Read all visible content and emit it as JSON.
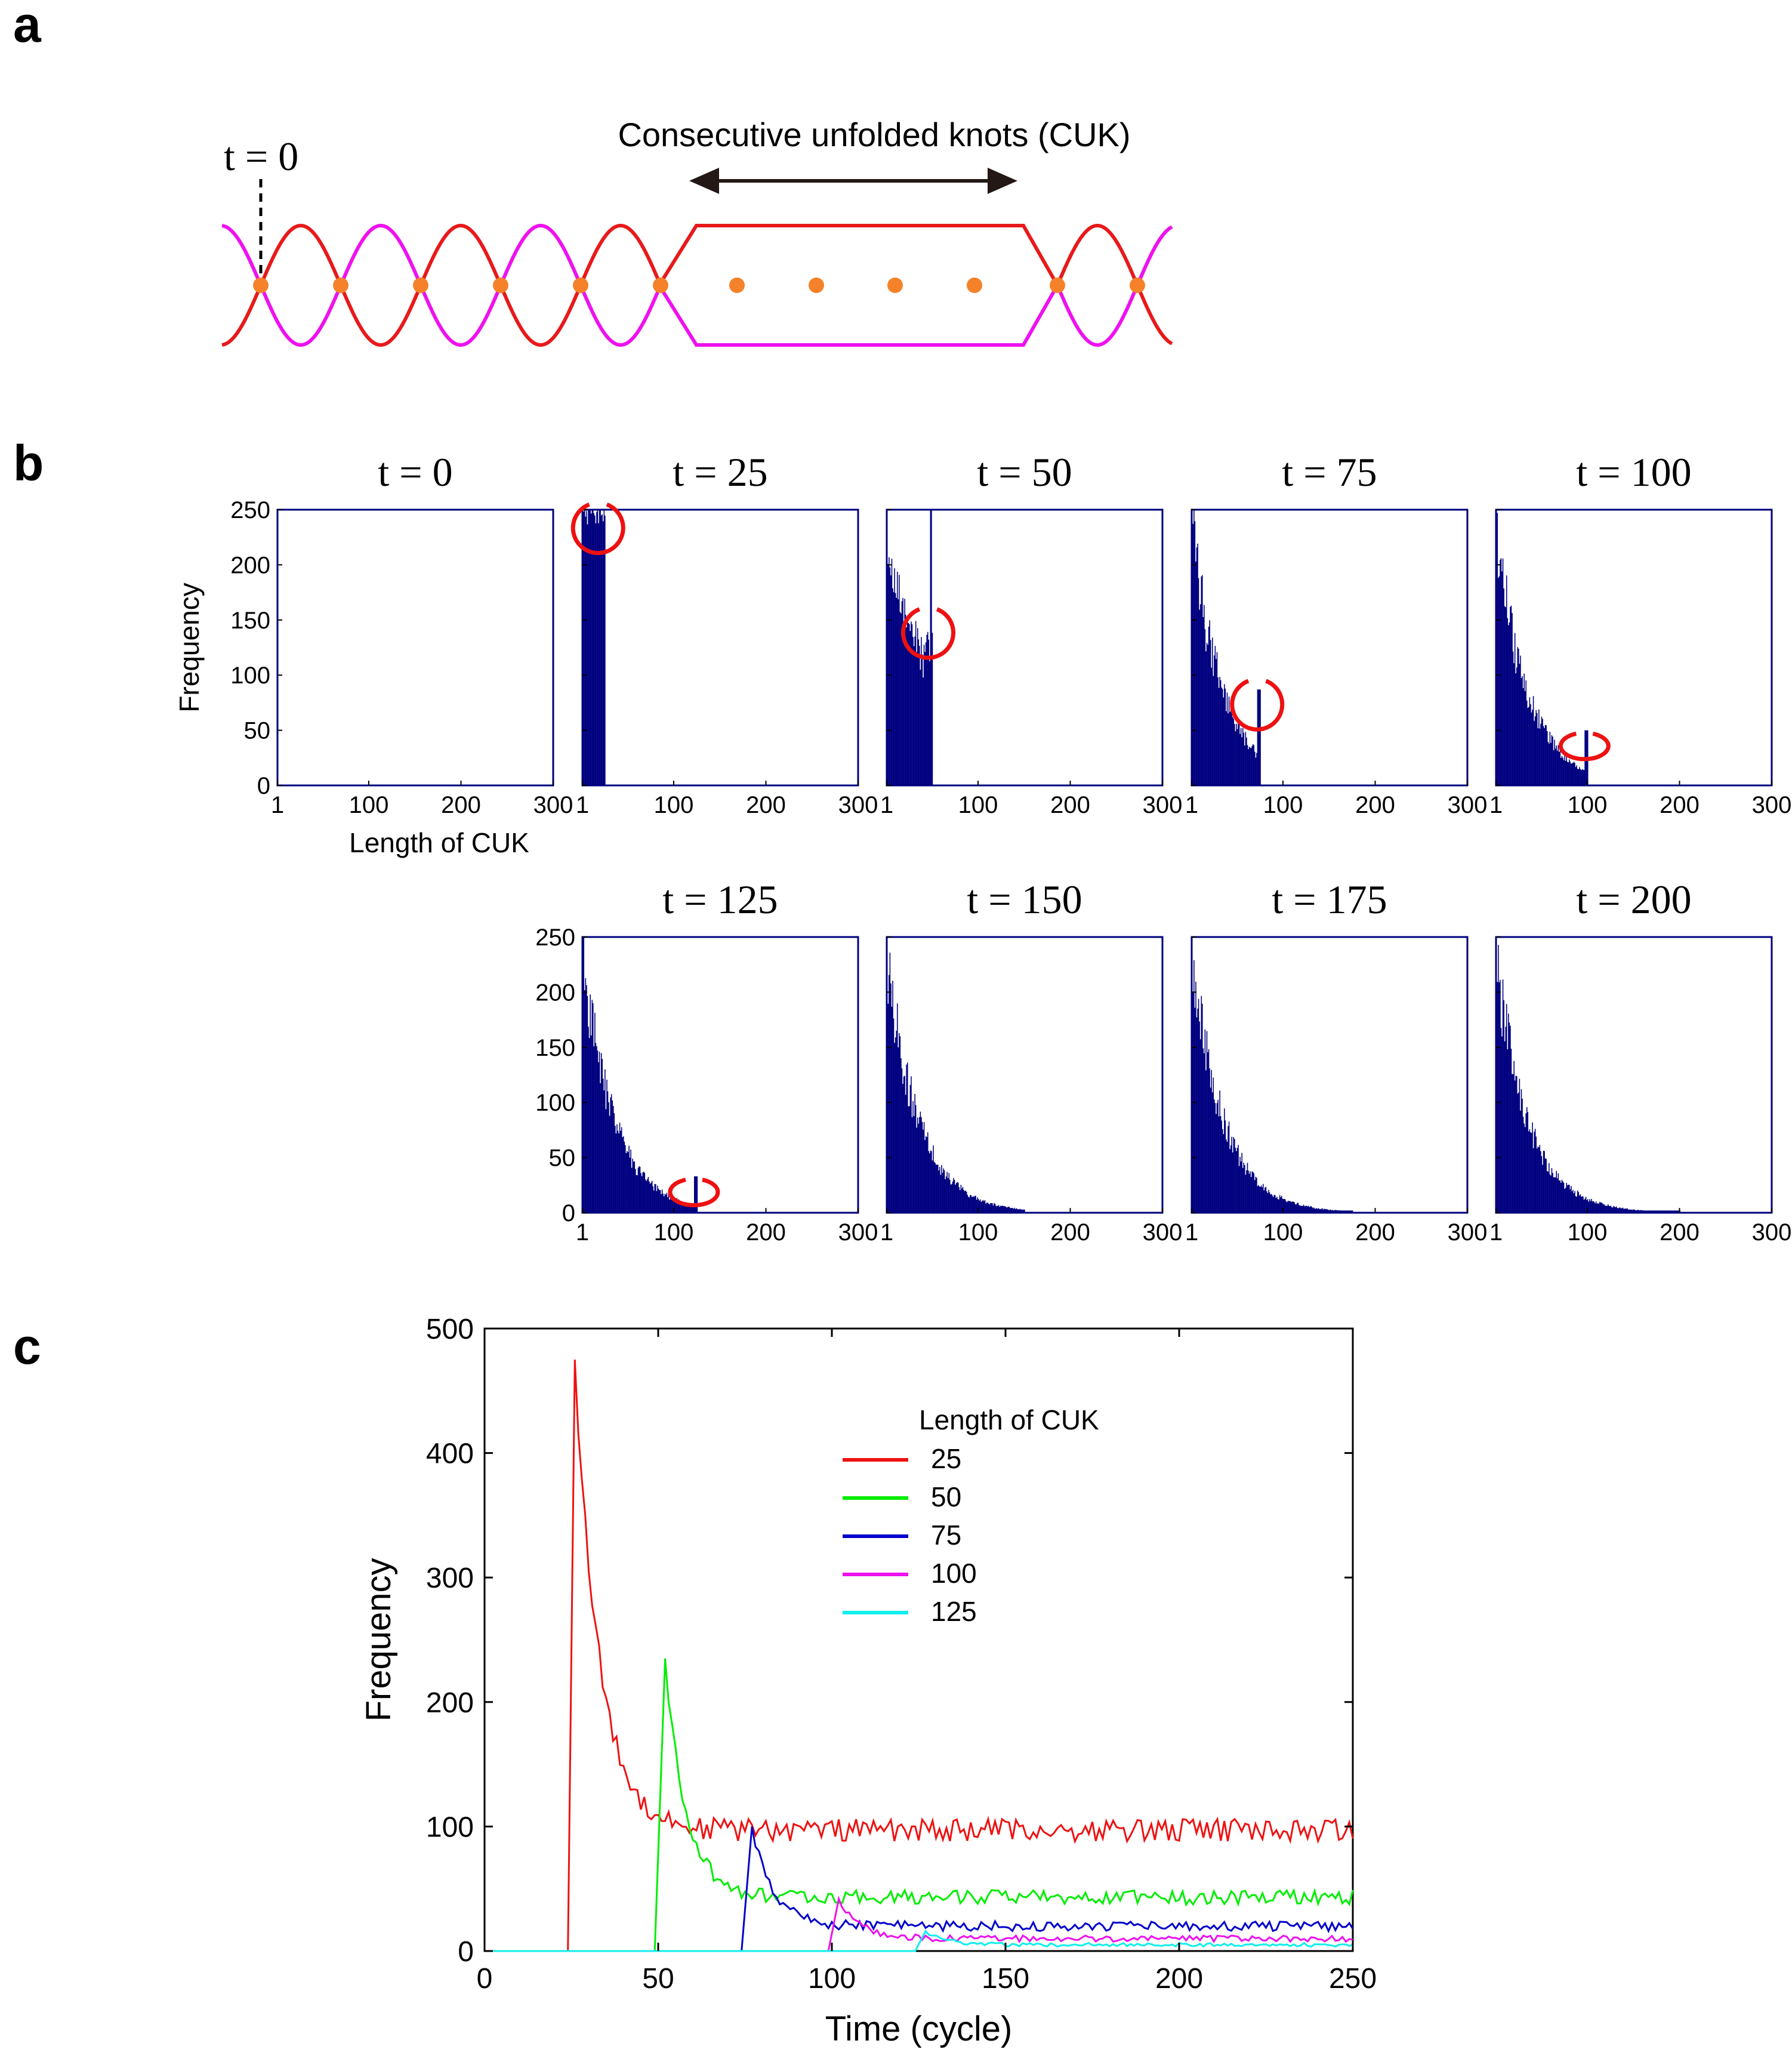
{
  "panels": {
    "a": {
      "letter": "a",
      "t_label": "t = 0",
      "cuk_label": "Consecutive unfolded knots (CUK)"
    },
    "b": {
      "letter": "b"
    },
    "c": {
      "letter": "c"
    }
  },
  "colors": {
    "bar": "#000080",
    "circle": "#ee1111",
    "strand_red": "#e8191a",
    "strand_magenta": "#ee11ee",
    "knot_dot": "#f5822a",
    "arrow": "#231815"
  },
  "chart_data": [
    {
      "type": "bar",
      "id": "histograms",
      "xlabel": "Length of CUK",
      "ylabel": "Frequency",
      "xlim": [
        1,
        300
      ],
      "ylim": [
        0,
        250
      ],
      "xticks": [
        "1",
        "100",
        "200",
        "300"
      ],
      "yticks": [
        "0",
        "50",
        "100",
        "150",
        "200",
        "250"
      ],
      "subplots": [
        {
          "title": "t = 0",
          "t": 0,
          "max_length": 0,
          "highlight": false
        },
        {
          "title": "t = 25",
          "t": 25,
          "max_length": 25,
          "highlight": true,
          "peak": [
            18,
            232
          ]
        },
        {
          "title": "t = 50",
          "t": 50,
          "max_length": 50,
          "highlight": true,
          "peak": [
            46,
            137
          ]
        },
        {
          "title": "t = 75",
          "t": 75,
          "max_length": 75,
          "highlight": true,
          "peak": [
            72,
            72
          ]
        },
        {
          "title": "t = 100",
          "t": 100,
          "max_length": 100,
          "highlight": true,
          "peak": [
            97,
            35
          ]
        },
        {
          "title": "t = 125",
          "t": 125,
          "max_length": 125,
          "highlight": true,
          "peak": [
            122,
            18
          ]
        },
        {
          "title": "t = 150",
          "t": 150,
          "max_length": 150,
          "highlight": false
        },
        {
          "title": "t = 175",
          "t": 175,
          "max_length": 175,
          "highlight": false
        },
        {
          "title": "t = 200",
          "t": 200,
          "max_length": 200,
          "highlight": false
        }
      ]
    },
    {
      "type": "line",
      "id": "timeseries",
      "xlabel": "Time (cycle)",
      "ylabel": "Frequency",
      "xlim": [
        0,
        250
      ],
      "ylim": [
        0,
        500
      ],
      "xticks": [
        "0",
        "50",
        "100",
        "150",
        "200",
        "250"
      ],
      "yticks": [
        "0",
        "100",
        "200",
        "300",
        "400",
        "500"
      ],
      "legend_title": "Length of CUK",
      "legend_position": "upper-center",
      "series": [
        {
          "name": "25",
          "color": "#ee1111",
          "onset": 25,
          "peak": 475,
          "peak_t": 26,
          "steady": 97,
          "noise": 9,
          "decay": 7
        },
        {
          "name": "50",
          "color": "#00ee00",
          "onset": 50,
          "peak": 235,
          "peak_t": 52,
          "steady": 43,
          "noise": 6,
          "decay": 6
        },
        {
          "name": "75",
          "color": "#0000cc",
          "onset": 75,
          "peak": 100,
          "peak_t": 77,
          "steady": 20,
          "noise": 4,
          "decay": 6
        },
        {
          "name": "100",
          "color": "#ee11ee",
          "onset": 100,
          "peak": 42,
          "peak_t": 102,
          "steady": 10,
          "noise": 2.5,
          "decay": 6
        },
        {
          "name": "125",
          "color": "#11eeee",
          "onset": 125,
          "peak": 16,
          "peak_t": 127,
          "steady": 5,
          "noise": 1.5,
          "decay": 6
        }
      ]
    }
  ]
}
